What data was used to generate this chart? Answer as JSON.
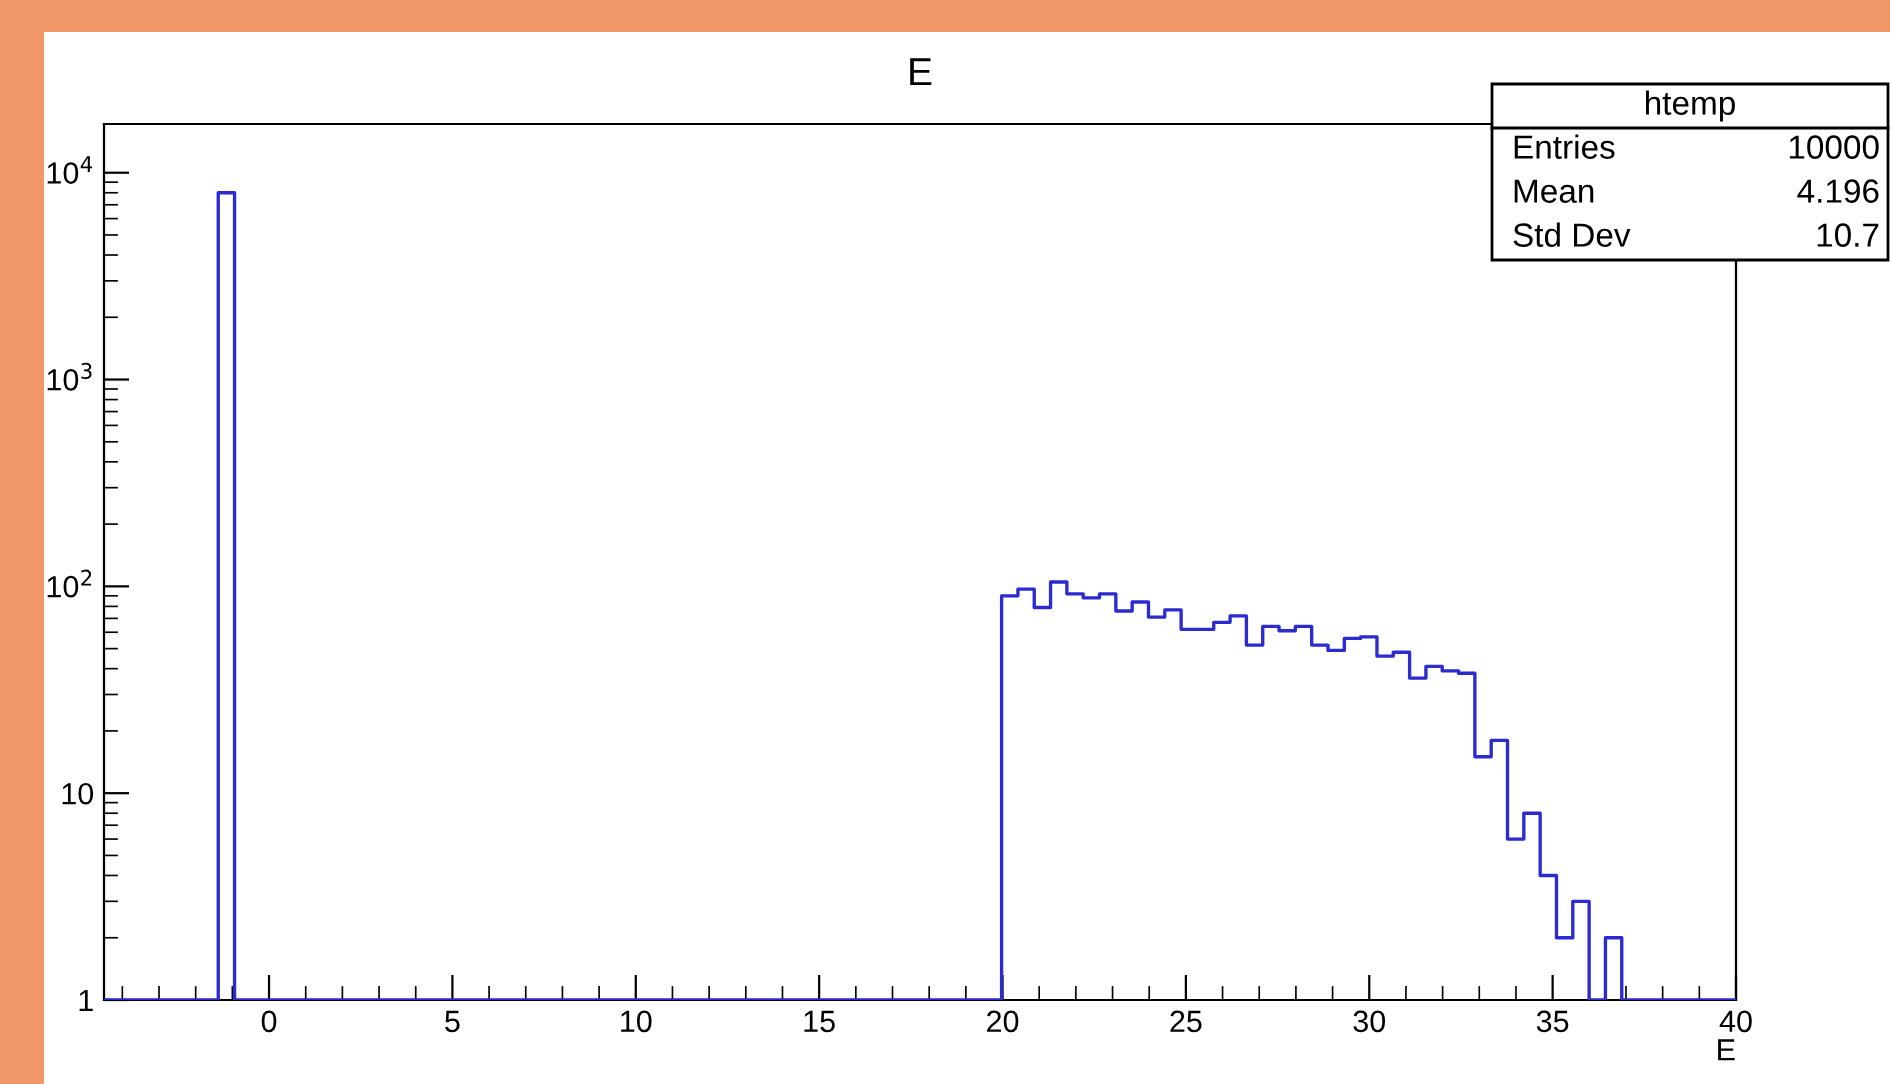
{
  "chart_data": {
    "type": "histogram",
    "title": "E",
    "xlabel": "E",
    "bins": [
      -4.5,
      -4.055,
      -3.61,
      -3.165,
      -2.72,
      -2.275,
      -1.83,
      -1.385,
      -0.94,
      -0.495,
      -0.05,
      0.395,
      0.84,
      1.285,
      1.73,
      2.175,
      2.62,
      3.065,
      3.51,
      3.955,
      4.4,
      4.845,
      5.29,
      5.735,
      6.18,
      6.625,
      7.07,
      7.515,
      7.96,
      8.405,
      8.85,
      9.295,
      9.74,
      10.185,
      10.63,
      11.075,
      11.52,
      11.965,
      12.41,
      12.855,
      13.3,
      13.745,
      14.19,
      14.635,
      15.08,
      15.525,
      15.97,
      16.415,
      16.86,
      17.305,
      17.75,
      18.195,
      18.64,
      19.085,
      19.53,
      19.975,
      20.42,
      20.865,
      21.31,
      21.755,
      22.2,
      22.645,
      23.09,
      23.535,
      23.98,
      24.425,
      24.87,
      25.315,
      25.76,
      26.205,
      26.65,
      27.095,
      27.54,
      27.985,
      28.43,
      28.875,
      29.32,
      29.765,
      30.21,
      30.655,
      31.1,
      31.545,
      31.99,
      32.435,
      32.88,
      33.325,
      33.77,
      34.215,
      34.66,
      35.105,
      35.55,
      35.995,
      36.44,
      36.885,
      37.33,
      37.775,
      38.22,
      38.665,
      39.11,
      39.555,
      40.0
    ],
    "values": [
      null,
      null,
      null,
      null,
      null,
      null,
      null,
      8000,
      null,
      null,
      null,
      null,
      null,
      null,
      null,
      null,
      null,
      null,
      null,
      null,
      null,
      null,
      null,
      null,
      null,
      null,
      null,
      null,
      null,
      null,
      null,
      null,
      null,
      null,
      null,
      null,
      null,
      null,
      null,
      null,
      null,
      null,
      null,
      null,
      null,
      null,
      null,
      null,
      null,
      null,
      null,
      null,
      null,
      null,
      null,
      90,
      97,
      79,
      105,
      92,
      88,
      92,
      76,
      84,
      71,
      77,
      62,
      62,
      67,
      72,
      52,
      64,
      61,
      64,
      52,
      49,
      56,
      57,
      46,
      48,
      36,
      41,
      39,
      38,
      15,
      18,
      6,
      8,
      4,
      2,
      3,
      null,
      2,
      null,
      null,
      null,
      null,
      null,
      null,
      null
    ],
    "color": "#2b2bd0",
    "log": "y",
    "xlim": [
      -4.5,
      40
    ],
    "ylim": [
      1,
      17200
    ],
    "xticks": [
      0,
      5,
      10,
      15,
      20,
      25,
      30,
      35,
      40
    ],
    "yticks": [
      1,
      10,
      {
        "value": 100,
        "label": "10$^{2}$"
      },
      {
        "value": 1000,
        "label": "10$^{3}$"
      },
      {
        "value": 10000,
        "label": "10$^{4}$"
      }
    ],
    "grid": false,
    "legend": false,
    "annotations": [
      "htemp",
      "Entries",
      "10000",
      "Mean",
      "4.196",
      "Std Dev",
      "10.7"
    ]
  }
}
